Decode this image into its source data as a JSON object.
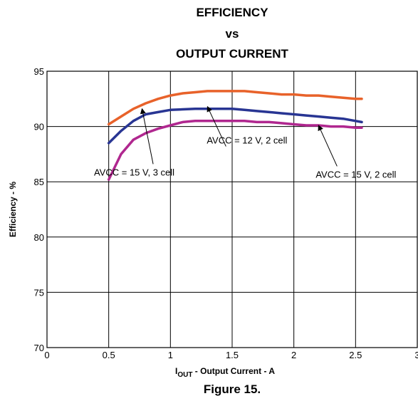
{
  "chart_data": {
    "type": "line",
    "title_lines": [
      "EFFICIENCY",
      "vs",
      "OUTPUT CURRENT"
    ],
    "ylabel": "Efficiency - %",
    "xlabel": {
      "main": "I",
      "sub": "OUT",
      "rest": " - Output Current - A"
    },
    "caption": "Figure 15.",
    "xlim": [
      0,
      3
    ],
    "ylim": [
      70,
      95
    ],
    "xticks": [
      0,
      0.5,
      1,
      1.5,
      2,
      2.5,
      3
    ],
    "xtick_labels": [
      "0",
      "0.5",
      "1",
      "1.5",
      "2",
      "2.5",
      "3"
    ],
    "yticks": [
      70,
      75,
      80,
      85,
      90,
      95
    ],
    "ytick_labels": [
      "70",
      "75",
      "80",
      "85",
      "90",
      "95"
    ],
    "grid": true,
    "series": [
      {
        "name": "AVCC = 12 V, 2 cell",
        "color": "#e8622a",
        "x": [
          0.5,
          0.6,
          0.7,
          0.8,
          0.9,
          1.0,
          1.1,
          1.2,
          1.3,
          1.4,
          1.5,
          1.6,
          1.7,
          1.8,
          1.9,
          2.0,
          2.1,
          2.2,
          2.3,
          2.4,
          2.5,
          2.55
        ],
        "y": [
          90.2,
          90.9,
          91.6,
          92.1,
          92.5,
          92.8,
          93.0,
          93.1,
          93.2,
          93.2,
          93.2,
          93.2,
          93.1,
          93.0,
          92.9,
          92.9,
          92.8,
          92.8,
          92.7,
          92.6,
          92.5,
          92.5
        ]
      },
      {
        "name": "AVCC = 15 V, 3 cell",
        "color": "#283593",
        "x": [
          0.5,
          0.6,
          0.7,
          0.8,
          0.9,
          1.0,
          1.1,
          1.2,
          1.3,
          1.4,
          1.5,
          1.6,
          1.7,
          1.8,
          1.9,
          2.0,
          2.1,
          2.2,
          2.3,
          2.4,
          2.5,
          2.55
        ],
        "y": [
          88.5,
          89.6,
          90.5,
          91.1,
          91.3,
          91.5,
          91.55,
          91.6,
          91.6,
          91.6,
          91.6,
          91.5,
          91.4,
          91.3,
          91.2,
          91.1,
          91.0,
          90.9,
          90.8,
          90.7,
          90.5,
          90.4
        ]
      },
      {
        "name": "AVCC = 15 V, 2 cell",
        "color": "#b0278f",
        "x": [
          0.5,
          0.6,
          0.7,
          0.8,
          0.9,
          1.0,
          1.1,
          1.2,
          1.3,
          1.4,
          1.5,
          1.6,
          1.7,
          1.8,
          1.9,
          2.0,
          2.1,
          2.2,
          2.3,
          2.4,
          2.5,
          2.55
        ],
        "y": [
          85.2,
          87.5,
          88.8,
          89.4,
          89.8,
          90.1,
          90.4,
          90.5,
          90.5,
          90.5,
          90.5,
          90.5,
          90.4,
          90.4,
          90.3,
          90.2,
          90.1,
          90.1,
          90.0,
          90.0,
          89.9,
          89.9
        ]
      }
    ],
    "annotations": [
      {
        "text": "AVCC = 12 V, 2 cell",
        "arrow_to": [
          1.3,
          91.8
        ],
        "from": [
          1.45,
          88.2
        ]
      },
      {
        "text": "AVCC = 15 V, 3 cell",
        "arrow_to": [
          0.77,
          91.6
        ],
        "from": [
          0.86,
          86.6
        ]
      },
      {
        "text": "AVCC = 15 V, 2 cell",
        "arrow_to": [
          2.2,
          90.1
        ],
        "from": [
          2.35,
          86.4
        ]
      }
    ]
  }
}
